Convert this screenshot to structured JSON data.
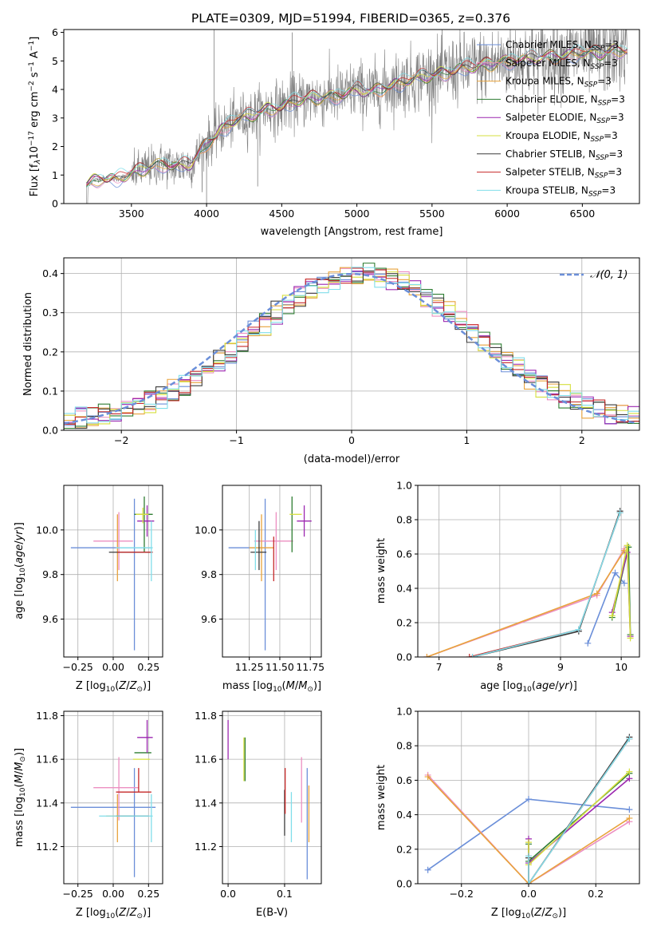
{
  "figure_title": "PLATE=0309, MJD=51994, FIBERID=0365, z=0.376",
  "colors": {
    "Chabrier MILES": "#6b8fd9",
    "Salpeter MILES": "#ec8fc1",
    "Kroupa MILES": "#e8a33c",
    "Chabrier ELODIE": "#2e7d32",
    "Salpeter ELODIE": "#9c27b0",
    "Kroupa ELODIE": "#d6df3f",
    "Chabrier STELIB": "#3c3c3c",
    "Salpeter STELIB": "#c62828",
    "Kroupa STELIB": "#80deea",
    "data": "#808080",
    "normal": "#6b8fd9"
  },
  "chart_data": [
    {
      "id": "spectrum",
      "type": "line",
      "title": "PLATE=0309, MJD=51994, FIBERID=0365, z=0.376",
      "xlabel": "wavelength [Angstrom, rest frame]",
      "ylabel": "Flux [f_λ 10^-17 erg cm^-2 s^-1 A^-1]",
      "xlim": [
        3050,
        6880
      ],
      "ylim": [
        0,
        6.1
      ],
      "xticks": [
        "3500",
        "4000",
        "4500",
        "5000",
        "5500",
        "6000",
        "6500"
      ],
      "yticks": [
        "0",
        "1",
        "2",
        "3",
        "4",
        "5",
        "6"
      ],
      "legend_position": "upper-right",
      "legend": [
        {
          "name": "Chabrier MILES",
          "sub": "SSP",
          "suffix": "=3"
        },
        {
          "name": "Salpeter MILES",
          "sub": "SSP",
          "suffix": "=3"
        },
        {
          "name": "Kroupa MILES",
          "sub": "SSP",
          "suffix": "=3"
        },
        {
          "name": "Chabrier ELODIE",
          "sub": "SSP",
          "suffix": "=3"
        },
        {
          "name": "Salpeter ELODIE",
          "sub": "SSP",
          "suffix": "=3"
        },
        {
          "name": "Kroupa ELODIE",
          "sub": "SSP",
          "suffix": "=3"
        },
        {
          "name": "Chabrier STELIB",
          "sub": "SSP",
          "suffix": "=3"
        },
        {
          "name": "Salpeter STELIB",
          "sub": "SSP",
          "suffix": "=3"
        },
        {
          "name": "Kroupa STELIB",
          "sub": "SSP",
          "suffix": "=3"
        }
      ],
      "model_trend": {
        "x": [
          3200,
          3250,
          3300,
          3400,
          3500,
          3600,
          3700,
          3800,
          3900,
          4000,
          4100,
          4200,
          4300,
          4400,
          4500,
          4600,
          4700,
          4800,
          4900,
          5000,
          5100,
          5200,
          5300,
          5400,
          5500,
          5600,
          5700,
          5800,
          5900,
          6000,
          6100,
          6200,
          6300,
          6400,
          6500,
          6600,
          6700,
          6800
        ],
        "y": [
          0.65,
          0.8,
          0.9,
          0.85,
          1.05,
          1.25,
          1.4,
          1.3,
          1.4,
          2.1,
          2.6,
          2.95,
          3.1,
          3.3,
          3.4,
          3.6,
          3.7,
          3.75,
          3.8,
          4.0,
          3.9,
          4.1,
          4.25,
          4.4,
          4.5,
          4.6,
          4.75,
          4.8,
          4.9,
          5.0,
          5.05,
          5.1,
          5.15,
          5.2,
          5.3,
          5.25,
          5.35,
          5.4
        ]
      }
    },
    {
      "id": "residuals",
      "type": "bar",
      "xlabel": "(data-model)/error",
      "ylabel": "Normed distribution",
      "xlim": [
        -2.5,
        2.5
      ],
      "ylim": [
        0,
        0.44
      ],
      "xticks": [
        "−2",
        "−1",
        "0",
        "1",
        "2"
      ],
      "yticks": [
        "0.0",
        "0.1",
        "0.2",
        "0.3",
        "0.4"
      ],
      "grid": true,
      "legend_position": "upper-right",
      "normal_label": "𝒩(0, 1)",
      "bin_width": 0.1
    },
    {
      "id": "age-vs-Z",
      "type": "scatter",
      "xlabel": "Z [log10(Z/Z⊙)]",
      "ylabel": "age [log10(age/yr)]",
      "xlim": [
        -0.35,
        0.35
      ],
      "ylim": [
        9.43,
        10.2
      ],
      "xticks": [
        "−0.25",
        "0.00",
        "0.25"
      ],
      "yticks": [
        "9.6",
        "9.8",
        "10.0"
      ],
      "grid": true,
      "points": [
        {
          "model": "Chabrier MILES",
          "x": 0.15,
          "y": 9.92,
          "xerr": [
            0.45,
            0.12
          ],
          "yerr": [
            0.46,
            0.22
          ]
        },
        {
          "model": "Salpeter MILES",
          "x": 0.04,
          "y": 9.95,
          "xerr": [
            0.18,
            0.1
          ],
          "yerr": [
            0.13,
            0.13
          ]
        },
        {
          "model": "Kroupa MILES",
          "x": 0.03,
          "y": 9.92,
          "xerr": [
            0.0,
            0.0
          ],
          "yerr": [
            0.15,
            0.15
          ]
        },
        {
          "model": "Chabrier ELODIE",
          "x": 0.22,
          "y": 10.07,
          "xerr": [
            0.07,
            0.06
          ],
          "yerr": [
            0.17,
            0.08
          ]
        },
        {
          "model": "Salpeter ELODIE",
          "x": 0.24,
          "y": 10.04,
          "xerr": [
            0.07,
            0.05
          ],
          "yerr": [
            0.07,
            0.07
          ]
        },
        {
          "model": "Kroupa ELODIE",
          "x": 0.21,
          "y": 10.07,
          "xerr": [
            0.05,
            0.04
          ],
          "yerr": [
            0.04,
            0.03
          ]
        },
        {
          "model": "Chabrier STELIB",
          "x": 0.09,
          "y": 9.9,
          "xerr": [
            0.12,
            0.18
          ],
          "yerr": [
            0.0,
            0.0
          ]
        },
        {
          "model": "Salpeter STELIB",
          "x": 0.18,
          "y": 9.9,
          "xerr": [
            0.15,
            0.1
          ],
          "yerr": [
            0.0,
            0.0
          ]
        },
        {
          "model": "Kroupa STELIB",
          "x": 0.27,
          "y": 9.92,
          "xerr": [
            0.25,
            0.01
          ],
          "yerr": [
            0.15,
            0.12
          ]
        }
      ]
    },
    {
      "id": "age-vs-mass",
      "type": "scatter",
      "xlabel": "mass [log10(M/M⊙)]",
      "ylabel": "",
      "xlim": [
        11.03,
        11.84
      ],
      "ylim": [
        9.43,
        10.2
      ],
      "xticks": [
        "11.25",
        "11.50",
        "11.75"
      ],
      "yticks": [
        "9.6",
        "9.8",
        "10.0"
      ],
      "grid": true,
      "points": [
        {
          "model": "Chabrier MILES",
          "x": 11.38,
          "y": 9.92,
          "xerr": [
            0.3,
            0.0
          ],
          "yerr": [
            0.46,
            0.22
          ]
        },
        {
          "model": "Salpeter MILES",
          "x": 11.47,
          "y": 9.95,
          "xerr": [
            0.18,
            0.14
          ],
          "yerr": [
            0.13,
            0.13
          ]
        },
        {
          "model": "Kroupa MILES",
          "x": 11.35,
          "y": 9.92,
          "xerr": [
            0.1,
            0.1
          ],
          "yerr": [
            0.15,
            0.15
          ]
        },
        {
          "model": "Chabrier ELODIE",
          "x": 11.6,
          "y": 10.07,
          "xerr": [
            0.0,
            0.0
          ],
          "yerr": [
            0.17,
            0.08
          ]
        },
        {
          "model": "Salpeter ELODIE",
          "x": 11.7,
          "y": 10.04,
          "xerr": [
            0.06,
            0.06
          ],
          "yerr": [
            0.07,
            0.07
          ]
        },
        {
          "model": "Kroupa ELODIE",
          "x": 11.63,
          "y": 10.07,
          "xerr": [
            0.05,
            0.05
          ],
          "yerr": [
            0.0,
            0.0
          ]
        },
        {
          "model": "Chabrier STELIB",
          "x": 11.33,
          "y": 9.9,
          "xerr": [
            0.07,
            0.06
          ],
          "yerr": [
            0.08,
            0.14
          ]
        },
        {
          "model": "Salpeter STELIB",
          "x": 11.45,
          "y": 9.9,
          "xerr": [
            0.0,
            0.0
          ],
          "yerr": [
            0.13,
            0.07
          ]
        },
        {
          "model": "Kroupa STELIB",
          "x": 11.3,
          "y": 9.93,
          "xerr": [
            0.0,
            0.0
          ],
          "yerr": [
            0.11,
            0.07
          ]
        }
      ]
    },
    {
      "id": "weight-vs-age",
      "type": "line",
      "xlabel": "age [log10(age/yr)]",
      "ylabel": "mass weight",
      "xlim": [
        6.65,
        10.3
      ],
      "ylim": [
        0,
        1.0
      ],
      "xticks": [
        "7",
        "8",
        "9",
        "10"
      ],
      "yticks": [
        "0.0",
        "0.2",
        "0.4",
        "0.6",
        "0.8",
        "1.0"
      ],
      "grid": true,
      "series": [
        {
          "model": "Chabrier MILES",
          "x": [
            9.45,
            9.9,
            10.05
          ],
          "y": [
            0.08,
            0.49,
            0.43
          ]
        },
        {
          "model": "Salpeter MILES",
          "x": [
            6.8,
            9.6,
            10.05
          ],
          "y": [
            0.0,
            0.36,
            0.63
          ]
        },
        {
          "model": "Kroupa MILES",
          "x": [
            6.8,
            9.6,
            10.05
          ],
          "y": [
            0.0,
            0.37,
            0.62
          ]
        },
        {
          "model": "Chabrier ELODIE",
          "x": [
            9.85,
            10.12,
            10.15
          ],
          "y": [
            0.23,
            0.64,
            0.13
          ]
        },
        {
          "model": "Salpeter ELODIE",
          "x": [
            9.85,
            10.1,
            10.15
          ],
          "y": [
            0.26,
            0.61,
            0.12
          ]
        },
        {
          "model": "Kroupa ELODIE",
          "x": [
            9.85,
            10.1,
            10.15
          ],
          "y": [
            0.24,
            0.65,
            0.11
          ]
        },
        {
          "model": "Chabrier STELIB",
          "x": [
            7.55,
            9.3,
            9.98
          ],
          "y": [
            0.0,
            0.15,
            0.85
          ]
        },
        {
          "model": "Salpeter STELIB",
          "x": [
            7.5,
            9.3,
            9.98
          ],
          "y": [
            0.0,
            0.16,
            0.84
          ]
        },
        {
          "model": "Kroupa STELIB",
          "x": [
            7.55,
            9.3,
            9.98
          ],
          "y": [
            0.0,
            0.16,
            0.84
          ]
        }
      ]
    },
    {
      "id": "mass-vs-Z",
      "type": "scatter",
      "xlabel": "Z [log10(Z/Z⊙)]",
      "ylabel": "mass [log10(M/M⊙)]",
      "xlim": [
        -0.35,
        0.35
      ],
      "ylim": [
        11.03,
        11.82
      ],
      "xticks": [
        "−0.25",
        "0.00",
        "0.25"
      ],
      "yticks": [
        "11.2",
        "11.4",
        "11.6",
        "11.8"
      ],
      "grid": true,
      "points": [
        {
          "model": "Chabrier MILES",
          "x": 0.15,
          "y": 11.38,
          "xerr": [
            0.45,
            0.15
          ],
          "yerr": [
            0.32,
            0.18
          ]
        },
        {
          "model": "Salpeter MILES",
          "x": 0.04,
          "y": 11.47,
          "xerr": [
            0.18,
            0.14
          ],
          "yerr": [
            0.15,
            0.14
          ]
        },
        {
          "model": "Kroupa MILES",
          "x": 0.03,
          "y": 11.34,
          "xerr": [
            0.08,
            0.1
          ],
          "yerr": [
            0.12,
            0.1
          ]
        },
        {
          "model": "Chabrier ELODIE",
          "x": 0.22,
          "y": 11.63,
          "xerr": [
            0.07,
            0.05
          ],
          "yerr": [
            0.0,
            0.0
          ]
        },
        {
          "model": "Salpeter ELODIE",
          "x": 0.24,
          "y": 11.7,
          "xerr": [
            0.07,
            0.04
          ],
          "yerr": [
            0.07,
            0.08
          ]
        },
        {
          "model": "Kroupa ELODIE",
          "x": 0.21,
          "y": 11.6,
          "xerr": [
            0.07,
            0.05
          ],
          "yerr": [
            0.0,
            0.0
          ]
        },
        {
          "model": "Chabrier STELIB",
          "x": 0.15,
          "y": 11.34,
          "xerr": [
            0.13,
            0.1
          ],
          "yerr": [
            0.0,
            0.0
          ]
        },
        {
          "model": "Salpeter STELIB",
          "x": 0.18,
          "y": 11.45,
          "xerr": [
            0.16,
            0.09
          ],
          "yerr": [
            0.0,
            0.11
          ]
        },
        {
          "model": "Kroupa STELIB",
          "x": 0.27,
          "y": 11.34,
          "xerr": [
            0.37,
            0.01
          ],
          "yerr": [
            0.12,
            0.1
          ]
        }
      ]
    },
    {
      "id": "mass-vs-EBV",
      "type": "scatter",
      "xlabel": "E(B-V)",
      "ylabel": "",
      "xlim": [
        -0.01,
        0.165
      ],
      "ylim": [
        11.03,
        11.82
      ],
      "xticks": [
        "0.0",
        "0.1"
      ],
      "yticks": [
        "11.2",
        "11.4",
        "11.6",
        "11.8"
      ],
      "grid": true,
      "points": [
        {
          "model": "Salpeter ELODIE",
          "x": 0.0,
          "y": 11.7,
          "xerr": [
            0,
            0
          ],
          "yerr": [
            0.1,
            0.08
          ]
        },
        {
          "model": "Kroupa ELODIE",
          "x": 0.028,
          "y": 11.6,
          "xerr": [
            0,
            0
          ],
          "yerr": [
            0.1,
            0.1
          ]
        },
        {
          "model": "Chabrier ELODIE",
          "x": 0.03,
          "y": 11.6,
          "xerr": [
            0,
            0
          ],
          "yerr": [
            0.1,
            0.1
          ]
        },
        {
          "model": "Chabrier STELIB",
          "x": 0.1,
          "y": 11.35,
          "xerr": [
            0,
            0
          ],
          "yerr": [
            0.1,
            0.11
          ]
        },
        {
          "model": "Salpeter STELIB",
          "x": 0.101,
          "y": 11.45,
          "xerr": [
            0,
            0
          ],
          "yerr": [
            0.1,
            0.11
          ]
        },
        {
          "model": "Kroupa STELIB",
          "x": 0.112,
          "y": 11.33,
          "xerr": [
            0,
            0
          ],
          "yerr": [
            0.11,
            0.12
          ]
        },
        {
          "model": "Salpeter MILES",
          "x": 0.13,
          "y": 11.46,
          "xerr": [
            0,
            0
          ],
          "yerr": [
            0.15,
            0.15
          ]
        },
        {
          "model": "Chabrier MILES",
          "x": 0.14,
          "y": 11.3,
          "xerr": [
            0,
            0
          ],
          "yerr": [
            0.25,
            0.26
          ]
        },
        {
          "model": "Kroupa MILES",
          "x": 0.143,
          "y": 11.35,
          "xerr": [
            0,
            0
          ],
          "yerr": [
            0.13,
            0.13
          ]
        }
      ]
    },
    {
      "id": "weight-vs-Z",
      "type": "line",
      "xlabel": "Z [log10(Z/Z⊙)]",
      "ylabel": "mass weight",
      "xlim": [
        -0.33,
        0.33
      ],
      "ylim": [
        0,
        1.0
      ],
      "xticks": [
        "−0.2",
        "0.0",
        "0.2"
      ],
      "yticks": [
        "0.0",
        "0.2",
        "0.4",
        "0.6",
        "0.8",
        "1.0"
      ],
      "grid": true,
      "series": [
        {
          "model": "Chabrier MILES",
          "x": [
            -0.3,
            0.0,
            0.3
          ],
          "y": [
            0.08,
            0.49,
            0.43
          ]
        },
        {
          "model": "Salpeter MILES",
          "x": [
            -0.3,
            0.0,
            0.3
          ],
          "y": [
            0.63,
            0.0,
            0.36
          ]
        },
        {
          "model": "Kroupa MILES",
          "x": [
            -0.3,
            0.0,
            0.3
          ],
          "y": [
            0.62,
            0.0,
            0.38
          ]
        },
        {
          "model": "Chabrier ELODIE",
          "x": [
            0.0,
            0.0,
            0.3
          ],
          "y": [
            0.23,
            0.13,
            0.64
          ]
        },
        {
          "model": "Salpeter ELODIE",
          "x": [
            0.0,
            0.0,
            0.3
          ],
          "y": [
            0.26,
            0.12,
            0.61
          ]
        },
        {
          "model": "Kroupa ELODIE",
          "x": [
            0.0,
            0.0,
            0.3
          ],
          "y": [
            0.24,
            0.11,
            0.65
          ]
        },
        {
          "model": "Chabrier STELIB",
          "x": [
            0.0,
            0.0,
            0.3
          ],
          "y": [
            0.15,
            0.0,
            0.85
          ]
        },
        {
          "model": "Salpeter STELIB",
          "x": [
            0.0,
            0.0,
            0.3
          ],
          "y": [
            0.16,
            0.0,
            0.84
          ]
        },
        {
          "model": "Kroupa STELIB",
          "x": [
            0.0,
            0.0,
            0.3
          ],
          "y": [
            0.16,
            0.0,
            0.84
          ]
        }
      ]
    }
  ]
}
